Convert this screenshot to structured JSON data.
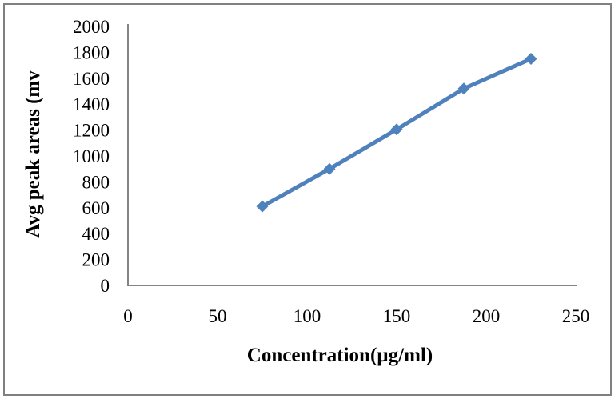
{
  "chart_data": {
    "type": "line",
    "title": "",
    "xlabel": "Concentration(µg/ml)",
    "ylabel": "Avg peak areas (mv",
    "x": [
      75,
      112.5,
      150,
      187.5,
      225
    ],
    "values": [
      610,
      900,
      1205,
      1520,
      1750
    ],
    "xlim": [
      0,
      250
    ],
    "ylim": [
      0,
      2000
    ],
    "x_ticks": [
      0,
      50,
      100,
      150,
      200,
      250
    ],
    "y_ticks": [
      0,
      200,
      400,
      600,
      800,
      1000,
      1200,
      1400,
      1600,
      1800,
      2000
    ],
    "grid": false,
    "legend": "none",
    "marker": "diamond",
    "colors": {
      "line": "#4F81BD",
      "marker": "#4F81BD",
      "axis": "#848484",
      "tick_text": "#000000",
      "frame_border": "#808080",
      "background": "#FFFFFF"
    }
  }
}
